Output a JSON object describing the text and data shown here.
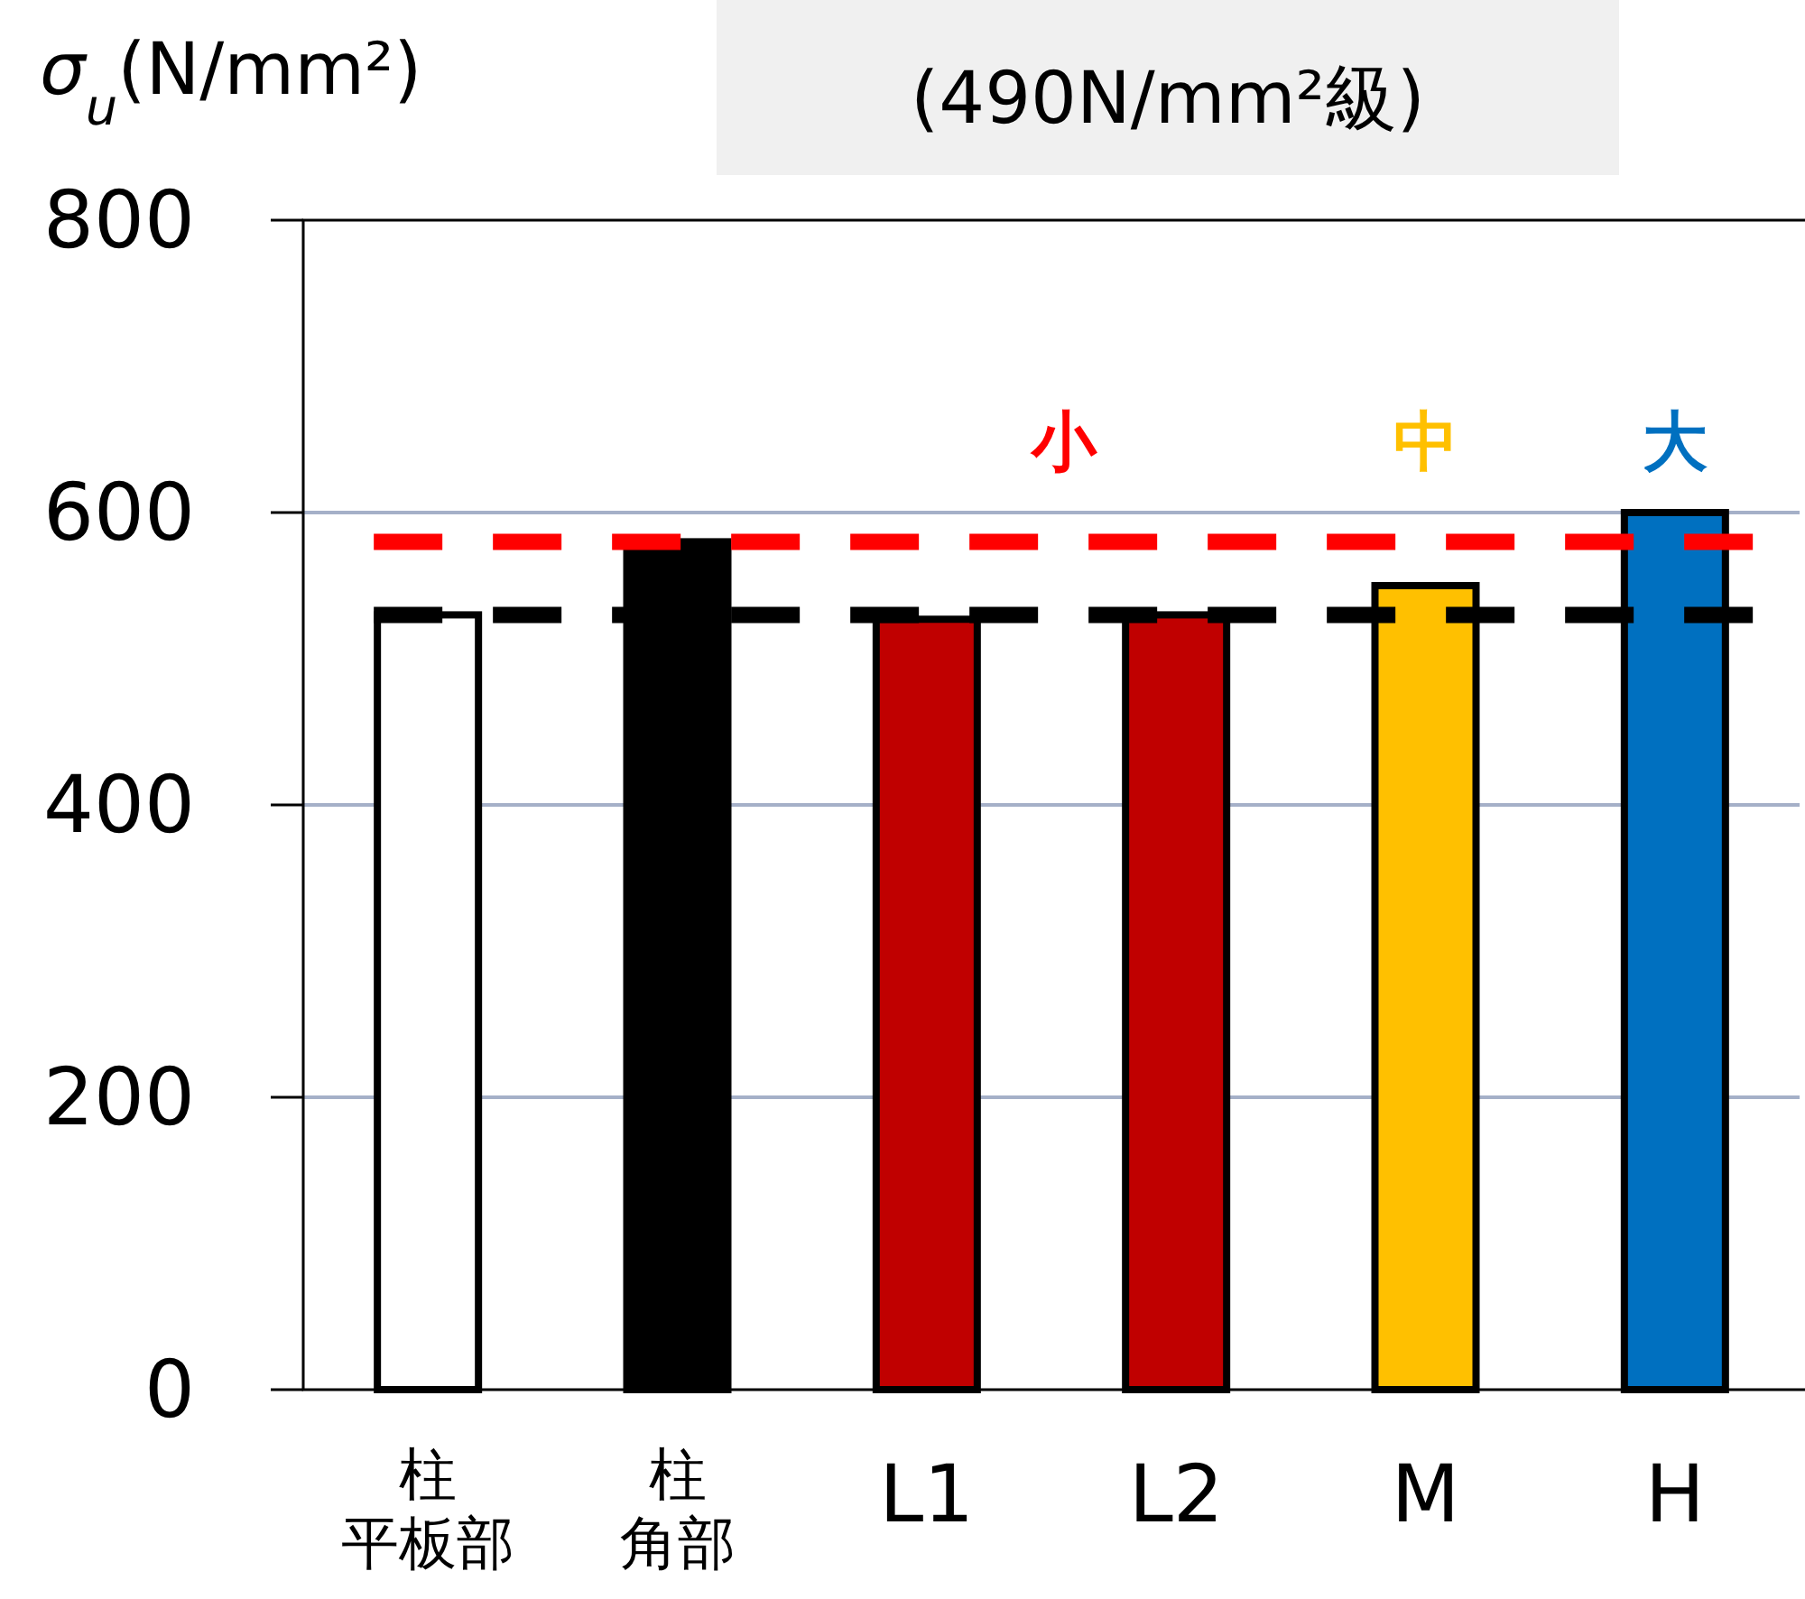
{
  "chart_data": {
    "type": "bar",
    "title": "(490N/mm²級)",
    "ylabel": "σ$_{u}$(N/mm²)",
    "categories": [
      "柱平板部",
      "柱角部",
      "L1",
      "L2",
      "M",
      "H"
    ],
    "values": [
      530,
      580,
      527,
      530,
      550,
      600
    ],
    "colors": [
      "#ffffff",
      "#000000",
      "#c00000",
      "#c00000",
      "#ffc000",
      "#0070c0"
    ],
    "ylim": [
      0,
      800
    ],
    "yticks": [
      0,
      200,
      400,
      600,
      800
    ],
    "grid": "y",
    "ref_lines": [
      {
        "axis": "y",
        "value": 580,
        "color": "#ff0000",
        "line_style": "dashed"
      },
      {
        "axis": "y",
        "value": 530,
        "color": "#000000",
        "line_style": "dashed"
      }
    ],
    "annotations": [
      "小",
      "中",
      "大"
    ]
  }
}
